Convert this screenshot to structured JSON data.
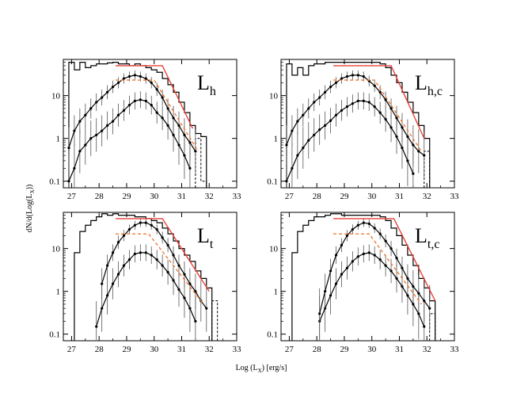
{
  "chart_data": {
    "type": "histogram-grid",
    "xlabel": "Log (L",
    "xlabel_sub": "X",
    "xlabel_suffix": ") [erg/s]",
    "ylabel": "dN/d(Log(L",
    "ylabel_sub": "X",
    "ylabel_suffix": "))",
    "xlim": [
      26.7,
      33
    ],
    "ylim": [
      0.07,
      70
    ],
    "xticks": [
      27,
      28,
      29,
      30,
      31,
      32,
      33
    ],
    "yticks": [
      0.1,
      1,
      10
    ],
    "ytick_labels": [
      "0.1",
      "1",
      "10"
    ],
    "colors": {
      "hist": "#000000",
      "data": "#000000",
      "fit": "#e8413a",
      "fit_dashed": "#f07a35"
    },
    "panels": [
      {
        "id": "Lh",
        "label": "L",
        "label_sub": "h",
        "envelope": {
          "edges": [
            26.9,
            27.1,
            27.3,
            27.5,
            27.7,
            27.9,
            28.1,
            28.3,
            28.5,
            28.7,
            28.9,
            29.1,
            29.3,
            29.5,
            29.7,
            29.9,
            30.1,
            30.3,
            30.5,
            30.7,
            30.9,
            31.1,
            31.3,
            31.5,
            31.7,
            31.9
          ],
          "values": [
            60,
            40,
            60,
            45,
            50,
            55,
            55,
            58,
            60,
            55,
            55,
            50,
            55,
            50,
            45,
            40,
            35,
            25,
            18,
            12,
            7,
            4,
            2,
            1.3,
            1.1
          ]
        },
        "hist_dashed": {
          "edges": [
            31.5,
            31.7,
            31.9
          ],
          "values": [
            1,
            0.1
          ]
        },
        "mid": {
          "x": [
            26.9,
            27.1,
            27.3,
            27.5,
            27.7,
            27.9,
            28.1,
            28.3,
            28.5,
            28.7,
            28.9,
            29.1,
            29.3,
            29.5,
            29.7,
            29.9,
            30.1,
            30.3,
            30.5,
            30.7,
            30.9,
            31.1,
            31.3,
            31.5
          ],
          "y": [
            0.6,
            1.5,
            2.5,
            3.5,
            5,
            7,
            9,
            12,
            16,
            20,
            25,
            28,
            30,
            28,
            25,
            20,
            14,
            9,
            5,
            3,
            2,
            1.2,
            0.8,
            0.5
          ]
        },
        "low": {
          "x": [
            26.9,
            27.1,
            27.3,
            27.5,
            27.7,
            27.9,
            28.1,
            28.3,
            28.5,
            28.7,
            28.9,
            29.1,
            29.3,
            29.5,
            29.7,
            29.9,
            30.1,
            30.3,
            30.5,
            30.7,
            30.9,
            31.1,
            31.3
          ],
          "y": [
            0.1,
            0.2,
            0.5,
            0.7,
            1,
            1.2,
            1.5,
            2,
            2.5,
            3.5,
            4.5,
            6,
            7.5,
            8,
            7.5,
            6,
            4,
            3,
            2,
            1.2,
            0.7,
            0.4,
            0.2
          ]
        },
        "fit": {
          "x": [
            28.6,
            30.0,
            30.3,
            31.4
          ],
          "y": [
            50,
            50,
            50,
            1.7
          ]
        },
        "fit_dashed": {
          "x": [
            28.6,
            30.0,
            31.6
          ],
          "y": [
            23,
            23,
            0.5
          ]
        }
      },
      {
        "id": "Lhc",
        "label": "L",
        "label_sub": "h,c",
        "envelope": {
          "edges": [
            26.9,
            27.1,
            27.3,
            27.5,
            27.7,
            27.9,
            28.1,
            28.3,
            28.5,
            28.7,
            28.9,
            29.1,
            29.3,
            29.5,
            29.7,
            29.9,
            30.1,
            30.3,
            30.5,
            30.7,
            30.9,
            31.1,
            31.3,
            31.5,
            31.7,
            31.9,
            32.1
          ],
          "values": [
            55,
            30,
            45,
            30,
            50,
            55,
            55,
            60,
            60,
            60,
            60,
            60,
            60,
            60,
            60,
            60,
            60,
            55,
            45,
            30,
            20,
            12,
            7,
            4,
            2,
            1
          ]
        },
        "hist_dashed": {
          "edges": [
            31.9,
            32.1
          ],
          "values": [
            0.5
          ]
        },
        "mid": {
          "x": [
            26.9,
            27.1,
            27.3,
            27.5,
            27.7,
            27.9,
            28.1,
            28.3,
            28.5,
            28.7,
            28.9,
            29.1,
            29.3,
            29.5,
            29.7,
            29.9,
            30.1,
            30.3,
            30.5,
            30.7,
            30.9,
            31.1,
            31.3,
            31.5,
            31.7,
            31.9
          ],
          "y": [
            0.7,
            1.5,
            2.5,
            3.5,
            5,
            7,
            9,
            12,
            16,
            20,
            25,
            28,
            30,
            30,
            28,
            22,
            17,
            12,
            8,
            5,
            3,
            1.8,
            1.1,
            0.7,
            0.5,
            0.4
          ]
        },
        "low": {
          "x": [
            26.9,
            27.1,
            27.3,
            27.5,
            27.7,
            27.9,
            28.1,
            28.3,
            28.5,
            28.7,
            28.9,
            29.1,
            29.3,
            29.5,
            29.7,
            29.9,
            30.1,
            30.3,
            30.5,
            30.7,
            30.9,
            31.1,
            31.3,
            31.5
          ],
          "y": [
            0.1,
            0.2,
            0.4,
            0.6,
            0.9,
            1.2,
            1.6,
            2,
            2.6,
            3.5,
            4.5,
            5.5,
            6.5,
            7.5,
            7.5,
            7,
            5.5,
            4,
            2.8,
            1.8,
            1.1,
            0.6,
            0.3,
            0.15
          ]
        },
        "fit": {
          "x": [
            28.6,
            30.5,
            30.7,
            31.9
          ],
          "y": [
            50,
            50,
            50,
            1.0
          ]
        },
        "fit_dashed": {
          "x": [
            28.6,
            30.1,
            31.8
          ],
          "y": [
            23,
            23,
            0.5
          ]
        }
      },
      {
        "id": "Lt",
        "label": "L",
        "label_sub": "t",
        "envelope": {
          "edges": [
            27.1,
            27.3,
            27.5,
            27.7,
            27.9,
            28.1,
            28.3,
            28.5,
            28.7,
            28.9,
            29.1,
            29.3,
            29.5,
            29.7,
            29.9,
            30.1,
            30.3,
            30.5,
            30.7,
            30.9,
            31.1,
            31.3,
            31.5,
            31.7,
            31.9,
            32.1
          ],
          "values": [
            8,
            25,
            35,
            45,
            55,
            65,
            60,
            65,
            60,
            60,
            60,
            55,
            55,
            50,
            45,
            40,
            30,
            22,
            15,
            10,
            7,
            5,
            3,
            2,
            1.2
          ]
        },
        "hist_dashed": {
          "edges": [
            32.1,
            32.3
          ],
          "values": [
            0.6
          ]
        },
        "mid": {
          "x": [
            28.1,
            28.3,
            28.5,
            28.7,
            28.9,
            29.1,
            29.3,
            29.5,
            29.7,
            29.9,
            30.1,
            30.3,
            30.5,
            30.7,
            30.9,
            31.1,
            31.3,
            31.5,
            31.7,
            31.9
          ],
          "y": [
            1.5,
            4,
            8,
            14,
            20,
            28,
            35,
            40,
            40,
            35,
            28,
            18,
            12,
            7,
            4,
            2.5,
            1.5,
            1,
            0.6,
            0.4
          ]
        },
        "low": {
          "x": [
            27.9,
            28.1,
            28.3,
            28.5,
            28.7,
            28.9,
            29.1,
            29.3,
            29.5,
            29.7,
            29.9,
            30.1,
            30.3,
            30.5,
            30.7,
            30.9,
            31.1,
            31.3,
            31.5
          ],
          "y": [
            0.15,
            0.4,
            0.8,
            1.5,
            2.5,
            4,
            5.5,
            7.5,
            8,
            8,
            7,
            5.5,
            4,
            2.8,
            1.8,
            1.1,
            0.7,
            0.4,
            0.2
          ]
        },
        "fit": {
          "x": [
            28.6,
            30.0,
            30.3,
            32.0
          ],
          "y": [
            50,
            50,
            50,
            1.0
          ]
        },
        "fit_dashed": {
          "x": [
            28.6,
            29.8,
            31.8
          ],
          "y": [
            22,
            22,
            0.5
          ]
        }
      },
      {
        "id": "Ltc",
        "label": "L",
        "label_sub": "t,c",
        "envelope": {
          "edges": [
            27.1,
            27.3,
            27.5,
            27.7,
            27.9,
            28.1,
            28.3,
            28.5,
            28.7,
            28.9,
            29.1,
            29.3,
            29.5,
            29.7,
            29.9,
            30.1,
            30.3,
            30.5,
            30.7,
            30.9,
            31.1,
            31.3,
            31.5,
            31.7,
            31.9,
            32.1,
            32.3
          ],
          "values": [
            8,
            25,
            35,
            45,
            55,
            55,
            60,
            65,
            65,
            60,
            60,
            60,
            60,
            60,
            60,
            60,
            55,
            45,
            30,
            20,
            12,
            7,
            4,
            2,
            1.2,
            0.6
          ]
        },
        "hist_dashed": {
          "edges": [
            32.1,
            32.3
          ],
          "values": [
            0.3
          ]
        },
        "mid": {
          "x": [
            28.1,
            28.3,
            28.5,
            28.7,
            28.9,
            29.1,
            29.3,
            29.5,
            29.7,
            29.9,
            30.1,
            30.3,
            30.5,
            30.7,
            30.9,
            31.1,
            31.3,
            31.5,
            31.7,
            31.9,
            32.1
          ],
          "y": [
            0.3,
            1,
            3,
            7,
            12,
            20,
            28,
            35,
            40,
            38,
            30,
            22,
            15,
            10,
            6,
            3.5,
            2,
            1.3,
            0.9,
            0.6,
            0.4
          ]
        },
        "low": {
          "x": [
            28.1,
            28.3,
            28.5,
            28.7,
            28.9,
            29.1,
            29.3,
            29.5,
            29.7,
            29.9,
            30.1,
            30.3,
            30.5,
            30.7,
            30.9,
            31.1,
            31.3,
            31.5,
            31.7,
            31.9
          ],
          "y": [
            0.2,
            0.4,
            0.8,
            1.5,
            2.5,
            3.5,
            5,
            6.5,
            7.5,
            8,
            7,
            5.5,
            4,
            3,
            2,
            1.3,
            0.8,
            0.5,
            0.3,
            0.15
          ]
        },
        "fit": {
          "x": [
            28.6,
            30.6,
            30.8,
            32.3
          ],
          "y": [
            50,
            50,
            50,
            0.6
          ]
        },
        "fit_dashed": {
          "x": [
            28.6,
            29.9,
            31.8
          ],
          "y": [
            22,
            22,
            0.5
          ]
        }
      }
    ]
  }
}
